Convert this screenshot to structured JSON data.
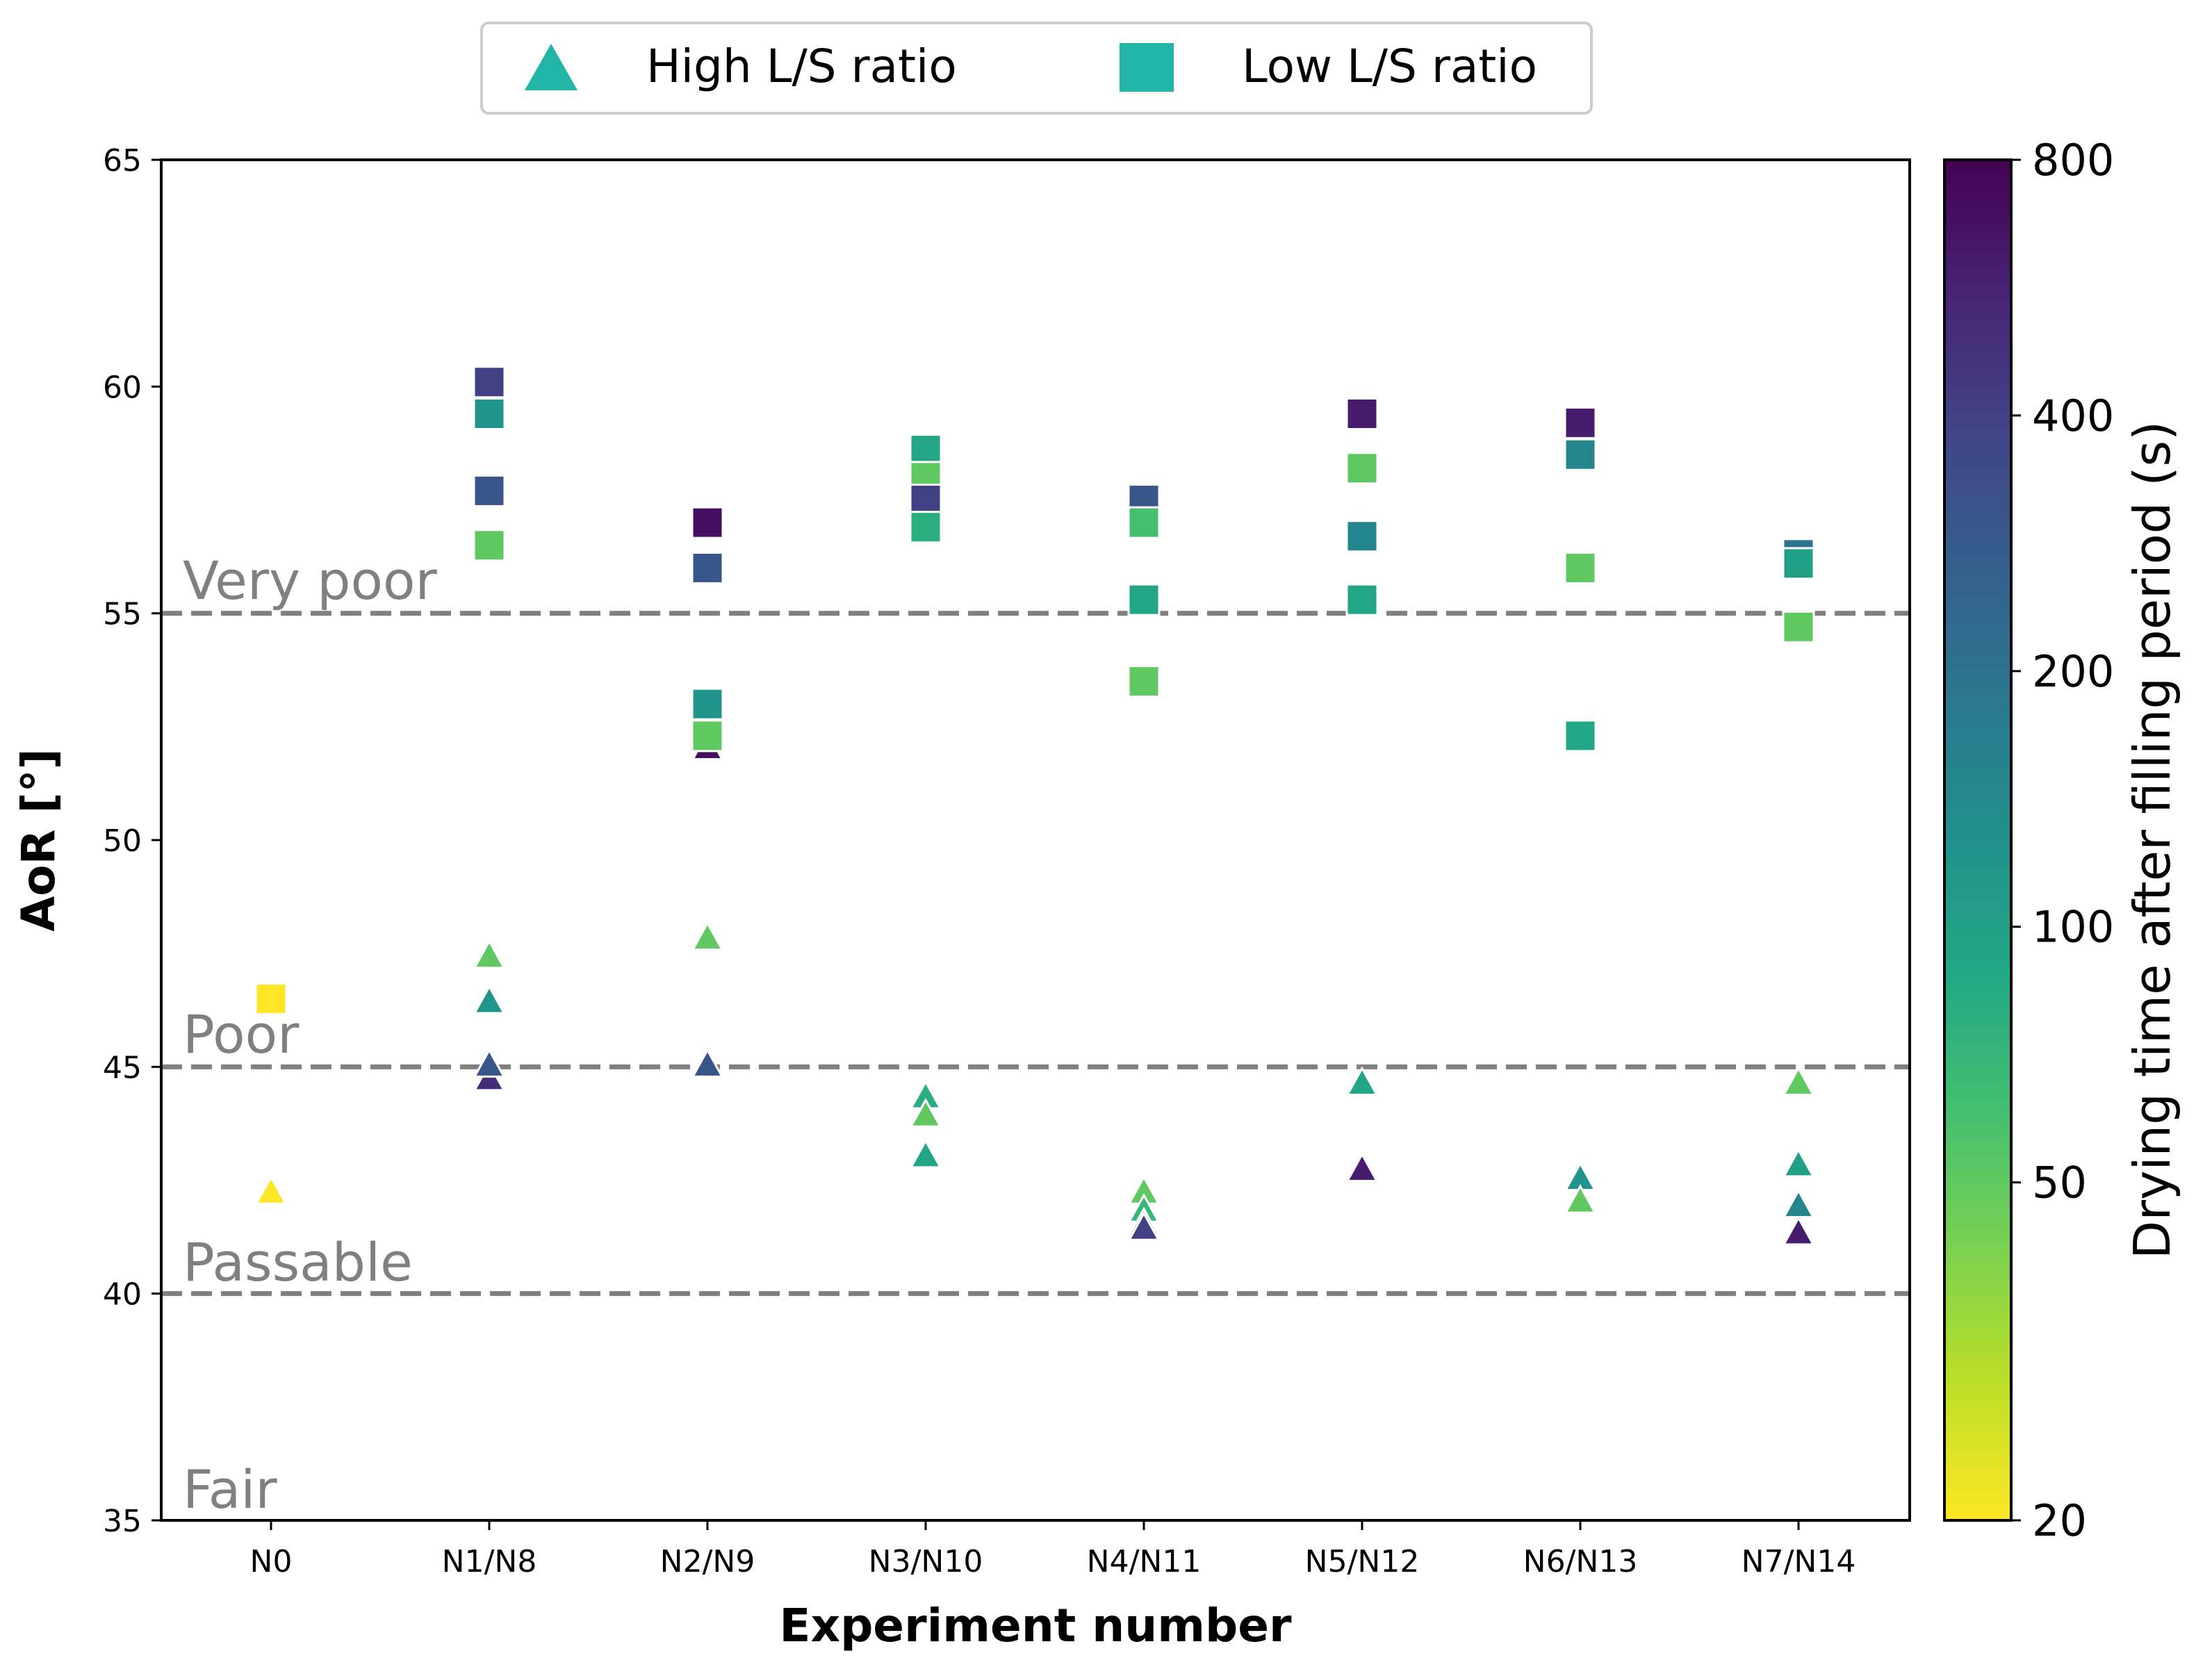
{
  "chart_data": {
    "type": "scatter",
    "xlabel": "Experiment number",
    "ylabel": "AoR [°]",
    "categories": [
      "N0",
      "N1/N8",
      "N2/N9",
      "N3/N10",
      "N4/N11",
      "N5/N12",
      "N6/N13",
      "N7/N14"
    ],
    "ylim": [
      35,
      65
    ],
    "yticks": [
      35,
      40,
      45,
      50,
      55,
      60,
      65
    ],
    "grid": false,
    "legend": {
      "position": "top-center",
      "entries": [
        {
          "label": "High L/S ratio",
          "marker": "triangle"
        },
        {
          "label": "Low L/S ratio",
          "marker": "square"
        }
      ],
      "color": "#21b5a8"
    },
    "colorbar": {
      "label": "Drying time after filling period (s)",
      "scale": "log",
      "range": [
        20,
        800
      ],
      "ticks": [
        20,
        50,
        100,
        200,
        400,
        800
      ],
      "colormap": "viridis"
    },
    "reference_lines": [
      {
        "y": 55,
        "label": "Very poor"
      },
      {
        "y": 45,
        "label": "Poor"
      },
      {
        "y": 40,
        "label": "Passable"
      }
    ],
    "bottom_zone_label": "Fair",
    "series": [
      {
        "name": "High L/S ratio",
        "marker": "triangle",
        "points": [
          {
            "x": "N0",
            "y": 42.2,
            "t": 20
          },
          {
            "x": "N1/N8",
            "y": 47.4,
            "t": 50
          },
          {
            "x": "N1/N8",
            "y": 46.4,
            "t": 120
          },
          {
            "x": "N1/N8",
            "y": 44.7,
            "t": 500
          },
          {
            "x": "N1/N8",
            "y": 45.0,
            "t": 300
          },
          {
            "x": "N2/N9",
            "y": 47.8,
            "t": 50
          },
          {
            "x": "N2/N9",
            "y": 52.0,
            "t": 700
          },
          {
            "x": "N2/N9",
            "y": 52.2,
            "t": 50
          },
          {
            "x": "N2/N9",
            "y": 52.4,
            "t": 120
          },
          {
            "x": "N2/N9",
            "y": 45.0,
            "t": 300
          },
          {
            "x": "N3/N10",
            "y": 44.3,
            "t": 80
          },
          {
            "x": "N3/N10",
            "y": 43.9,
            "t": 50
          },
          {
            "x": "N3/N10",
            "y": 43.0,
            "t": 90
          },
          {
            "x": "N4/N11",
            "y": 42.2,
            "t": 50
          },
          {
            "x": "N4/N11",
            "y": 41.8,
            "t": 70
          },
          {
            "x": "N4/N11",
            "y": 41.5,
            "t": 150
          },
          {
            "x": "N4/N11",
            "y": 41.4,
            "t": 400
          },
          {
            "x": "N5/N12",
            "y": 44.6,
            "t": 90
          },
          {
            "x": "N5/N12",
            "y": 42.7,
            "t": 600
          },
          {
            "x": "N6/N13",
            "y": 42.5,
            "t": 120
          },
          {
            "x": "N6/N13",
            "y": 42.0,
            "t": 50
          },
          {
            "x": "N7/N14",
            "y": 44.6,
            "t": 50
          },
          {
            "x": "N7/N14",
            "y": 42.8,
            "t": 100
          },
          {
            "x": "N7/N14",
            "y": 41.9,
            "t": 150
          },
          {
            "x": "N7/N14",
            "y": 41.3,
            "t": 600
          }
        ]
      },
      {
        "name": "Low L/S ratio",
        "marker": "square",
        "points": [
          {
            "x": "N0",
            "y": 46.5,
            "t": 20
          },
          {
            "x": "N1/N8",
            "y": 60.1,
            "t": 400
          },
          {
            "x": "N1/N8",
            "y": 59.4,
            "t": 120
          },
          {
            "x": "N1/N8",
            "y": 57.7,
            "t": 300
          },
          {
            "x": "N1/N8",
            "y": 56.5,
            "t": 50
          },
          {
            "x": "N2/N9",
            "y": 57.0,
            "t": 700
          },
          {
            "x": "N2/N9",
            "y": 56.0,
            "t": 300
          },
          {
            "x": "N2/N9",
            "y": 53.0,
            "t": 120
          },
          {
            "x": "N2/N9",
            "y": 52.3,
            "t": 50
          },
          {
            "x": "N3/N10",
            "y": 58.6,
            "t": 90
          },
          {
            "x": "N3/N10",
            "y": 58.0,
            "t": 50
          },
          {
            "x": "N3/N10",
            "y": 57.5,
            "t": 400
          },
          {
            "x": "N3/N10",
            "y": 56.9,
            "t": 80
          },
          {
            "x": "N4/N11",
            "y": 57.5,
            "t": 300
          },
          {
            "x": "N4/N11",
            "y": 57.0,
            "t": 60
          },
          {
            "x": "N4/N11",
            "y": 55.3,
            "t": 90
          },
          {
            "x": "N4/N11",
            "y": 53.5,
            "t": 50
          },
          {
            "x": "N5/N12",
            "y": 59.4,
            "t": 600
          },
          {
            "x": "N5/N12",
            "y": 58.2,
            "t": 50
          },
          {
            "x": "N5/N12",
            "y": 56.7,
            "t": 150
          },
          {
            "x": "N5/N12",
            "y": 55.3,
            "t": 90
          },
          {
            "x": "N6/N13",
            "y": 59.2,
            "t": 600
          },
          {
            "x": "N6/N13",
            "y": 58.5,
            "t": 150
          },
          {
            "x": "N6/N13",
            "y": 56.0,
            "t": 50
          },
          {
            "x": "N6/N13",
            "y": 52.3,
            "t": 90
          },
          {
            "x": "N7/N14",
            "y": 56.3,
            "t": 200
          },
          {
            "x": "N7/N14",
            "y": 56.1,
            "t": 100
          },
          {
            "x": "N7/N14",
            "y": 54.7,
            "t": 50
          }
        ]
      }
    ]
  }
}
